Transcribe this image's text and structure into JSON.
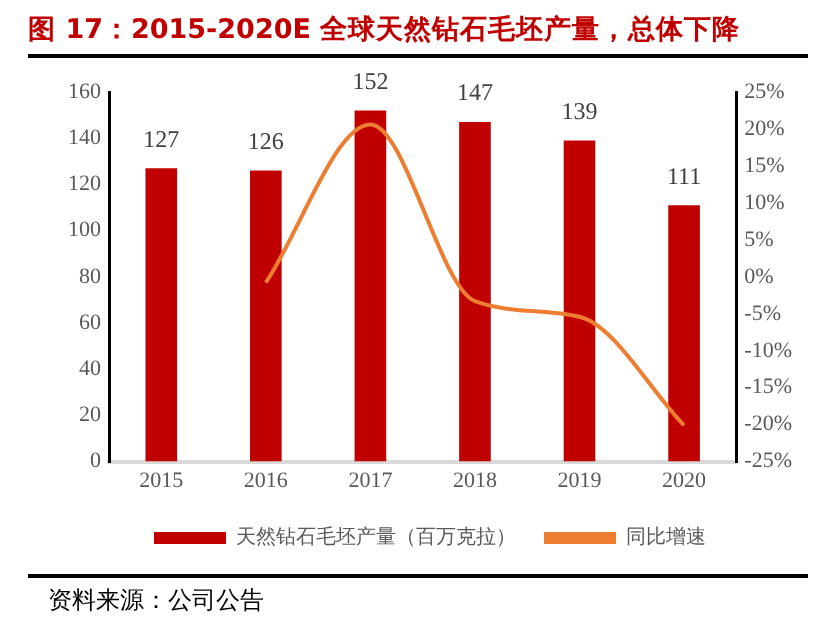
{
  "chart_data": {
    "type": "bar",
    "title": "图 17：2015-2020E 全球天然钻石毛坯产量，总体下降",
    "categories": [
      "2015",
      "2016",
      "2017",
      "2018",
      "2019",
      "2020"
    ],
    "series": [
      {
        "name": "天然钻石毛坯产量（百万克拉）",
        "color": "#c00000",
        "values": [
          127,
          126,
          152,
          147,
          139,
          111
        ],
        "value_labels": [
          "127",
          "126",
          "152",
          "147",
          "139",
          "111"
        ]
      },
      {
        "name": "同比增速",
        "type": "line",
        "axis": "y2",
        "color": "#ed7d31",
        "values": [
          null,
          -0.8,
          20.6,
          -3.3,
          -5.4,
          -20.1
        ]
      }
    ],
    "ylim": [
      0,
      160
    ],
    "yticks": [
      0,
      20,
      40,
      60,
      80,
      100,
      120,
      140,
      160
    ],
    "y2lim": [
      -25,
      25
    ],
    "y2ticks": [
      {
        "value": -25,
        "label": "-25%"
      },
      {
        "value": -20,
        "label": "-20%"
      },
      {
        "value": -15,
        "label": "-15%"
      },
      {
        "value": -10,
        "label": "-10%"
      },
      {
        "value": -5,
        "label": "-5%"
      },
      {
        "value": 0,
        "label": "0%"
      },
      {
        "value": 5,
        "label": "5%"
      },
      {
        "value": 10,
        "label": "10%"
      },
      {
        "value": 15,
        "label": "15%"
      },
      {
        "value": 20,
        "label": "20%"
      },
      {
        "value": 25,
        "label": "25%"
      }
    ],
    "grid": false,
    "legend": "bottom",
    "marker": "none",
    "line_style": "solid",
    "annotations": [
      "资料来源：公司公告"
    ]
  }
}
